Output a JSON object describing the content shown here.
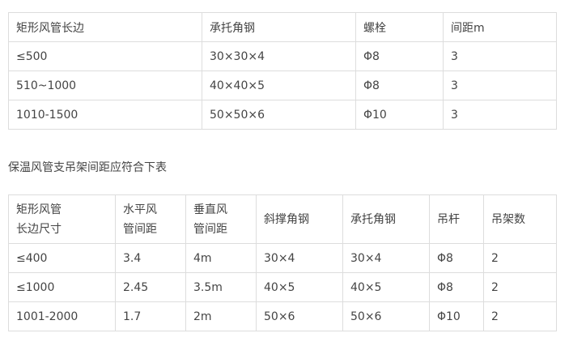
{
  "table1": {
    "headers": [
      "矩形风管长边",
      "承托角钢",
      "螺栓",
      "间距m"
    ],
    "rows": [
      [
        "≤500",
        "30×30×4",
        "Φ8",
        "3"
      ],
      [
        "510~1000",
        "40×40×5",
        "Φ8",
        "3"
      ],
      [
        "1010-1500",
        "50×50×6",
        "Φ10",
        "3"
      ]
    ]
  },
  "caption": "保温风管支吊架间距应符合下表",
  "table2": {
    "headers": [
      [
        "矩形风管",
        "长边尺寸"
      ],
      [
        "水平风",
        "管间距"
      ],
      [
        "垂直风",
        "管间距"
      ],
      [
        "斜撑角钢"
      ],
      [
        "承托角钢"
      ],
      [
        "吊杆"
      ],
      [
        "吊架数"
      ]
    ],
    "rows": [
      [
        "≤400",
        "3.4",
        "4m",
        "30×4",
        "30×4",
        "Φ8",
        "2"
      ],
      [
        "≤1000",
        "2.45",
        "3.5m",
        "40×5",
        "40×5",
        "Φ8",
        "2"
      ],
      [
        "1001-2000",
        "1.7",
        "2m",
        "50×6",
        "50×6",
        "Φ10",
        "2"
      ]
    ]
  }
}
